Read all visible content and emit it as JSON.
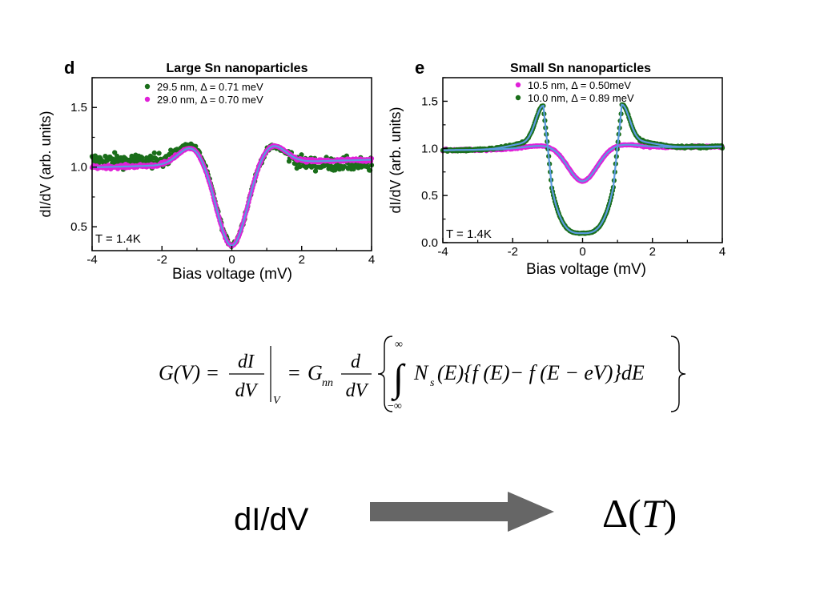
{
  "chart_data": [
    {
      "type": "scatter",
      "panel_letter": "d",
      "title": "Large Sn nanoparticles",
      "xlabel": "Bias voltage (mV)",
      "ylabel": "dI/dV (arb. units)",
      "xlim": [
        -4,
        4
      ],
      "ylim": [
        0.3,
        1.75
      ],
      "x_ticks": [
        "-4",
        "-2",
        "0",
        "2",
        "4"
      ],
      "y_ticks": [
        "0.5",
        "1.0",
        "1.5"
      ],
      "legend_position": "top-center",
      "annotation": "T = 1.4K",
      "series": [
        {
          "name": "29.5 nm, Δ = 0.71 meV",
          "color": "#1a6e1a",
          "gap": 0.71,
          "baseline": 1.04,
          "slope": -0.005,
          "noise": 0.055,
          "kind": "large"
        },
        {
          "name": "29.0 nm, Δ = 0.70 meV",
          "color": "#e020d8",
          "gap": 0.7,
          "baseline": 1.03,
          "slope": 0.008,
          "noise": 0.014,
          "kind": "large"
        }
      ],
      "fit_color": "#5a9be0"
    },
    {
      "type": "scatter",
      "panel_letter": "e",
      "title": "Small Sn nanoparticles",
      "xlabel": "Bias voltage (mV)",
      "ylabel": "dI/dV (arb. units)",
      "xlim": [
        -4,
        4
      ],
      "ylim": [
        0,
        1.75
      ],
      "x_ticks": [
        "-4",
        "-2",
        "0",
        "2",
        "4"
      ],
      "y_ticks": [
        "0.0",
        "0.5",
        "1.0",
        "1.5"
      ],
      "legend_position": "top-center",
      "annotation": "T = 1.4K",
      "series": [
        {
          "name": "10.5 nm, Δ = 0.50meV",
          "color": "#e020d8",
          "gap": 0.5,
          "baseline": 1.0,
          "slope": 0.005,
          "noise": 0.01,
          "kind": "small-weak"
        },
        {
          "name": "10.0 nm, Δ = 0.89 meV",
          "color": "#1a6e1a",
          "gap": 0.89,
          "baseline": 1.0,
          "slope": 0.005,
          "noise": 0.012,
          "kind": "small-strong"
        }
      ],
      "fit_color": "#5a9be0"
    }
  ],
  "formula": {
    "lhs": "G(V) = ",
    "frac1_num": "dI",
    "frac1_den": "dV",
    "eval_sub": "V",
    "equals": "=",
    "coef": "G",
    "coef_sub": "nn",
    "frac2_num": "d",
    "frac2_den": "dV",
    "upper_limit": "∞",
    "lower_limit": "−∞",
    "integrand": "N",
    "integrand_sub": "s",
    "integrand_rest": "(E){f (E)− f (E − eV)}dE"
  },
  "bottom": {
    "label_left": "dI/dV",
    "label_right_symbol": "Δ",
    "label_right_var": "T",
    "arrow_color": "#666666"
  }
}
